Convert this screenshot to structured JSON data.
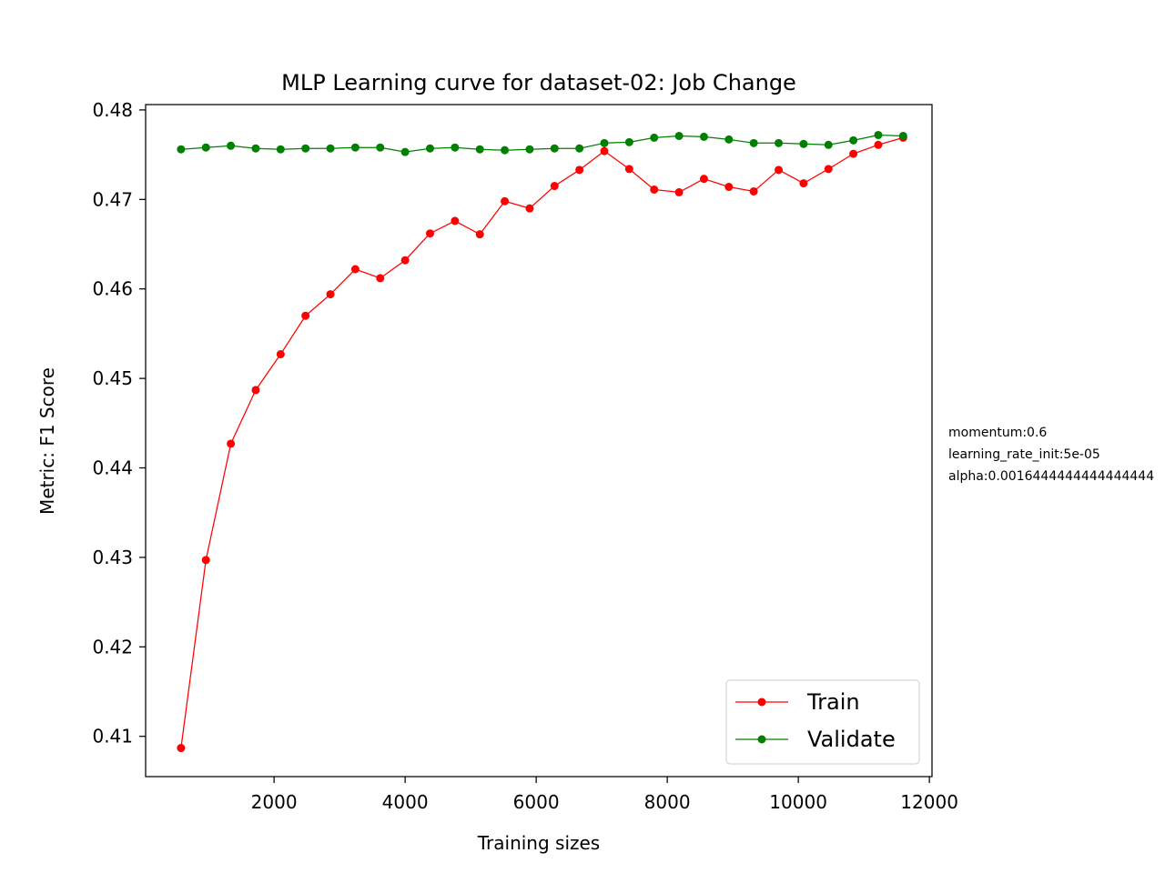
{
  "chart_data": {
    "type": "line",
    "title": "MLP Learning curve for dataset-02: Job Change",
    "xlabel": "Training sizes",
    "ylabel": "Metric: F1 Score",
    "xlim": [
      40,
      12040
    ],
    "ylim": [
      0.4055,
      0.4806
    ],
    "xticks": [
      2000,
      4000,
      6000,
      8000,
      10000,
      12000
    ],
    "xtick_labels": [
      "2000",
      "4000",
      "6000",
      "8000",
      "10000",
      "12000"
    ],
    "yticks": [
      0.41,
      0.42,
      0.43,
      0.44,
      0.45,
      0.46,
      0.47,
      0.48
    ],
    "ytick_labels": [
      "0.41",
      "0.42",
      "0.43",
      "0.44",
      "0.45",
      "0.46",
      "0.47",
      "0.48"
    ],
    "grid": false,
    "legend_position": "bottom-right",
    "x": [
      580,
      960,
      1340,
      1720,
      2100,
      2480,
      2860,
      3240,
      3620,
      4000,
      4380,
      4760,
      5140,
      5520,
      5900,
      6280,
      6660,
      7040,
      7420,
      7800,
      8180,
      8560,
      8940,
      9320,
      9700,
      10080,
      10460,
      10840,
      11220,
      11600
    ],
    "series": [
      {
        "name": "Train",
        "color": "#ff0000",
        "values": [
          0.4087,
          0.4297,
          0.4427,
          0.4487,
          0.4527,
          0.457,
          0.4594,
          0.4622,
          0.4612,
          0.4632,
          0.4662,
          0.4676,
          0.4661,
          0.4698,
          0.469,
          0.4715,
          0.4733,
          0.4754,
          0.4734,
          0.4711,
          0.4708,
          0.4723,
          0.4714,
          0.4709,
          0.4733,
          0.4718,
          0.4734,
          0.4751,
          0.4761,
          0.4769
        ]
      },
      {
        "name": "Validate",
        "color": "#008000",
        "values": [
          0.4756,
          0.4758,
          0.476,
          0.4757,
          0.4756,
          0.4757,
          0.4757,
          0.4758,
          0.4758,
          0.4753,
          0.4757,
          0.4758,
          0.4756,
          0.4755,
          0.4756,
          0.4757,
          0.4757,
          0.4763,
          0.4764,
          0.4769,
          0.4771,
          0.477,
          0.4767,
          0.4763,
          0.4763,
          0.4762,
          0.4761,
          0.4766,
          0.4772,
          0.4771
        ]
      }
    ],
    "annotations": [
      "momentum:0.6",
      "learning_rate_init:5e-05",
      "alpha:0.0016444444444444444"
    ]
  }
}
